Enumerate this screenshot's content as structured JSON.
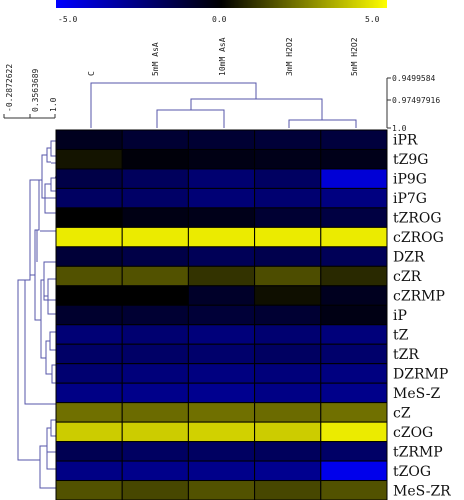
{
  "chart_data": {
    "type": "heatmap",
    "title": "",
    "colorbar": {
      "min": -5.0,
      "max": 5.0,
      "tick_labels": [
        "-5.0",
        "0.0",
        "5.0"
      ],
      "colors": {
        "low": "#0000ff",
        "mid": "#000000",
        "high": "#ffff00"
      }
    },
    "columns": [
      "C",
      "5mM AsA",
      "10mM AsA",
      "3mM H2O2",
      "5mM H2O2"
    ],
    "rows": [
      "iPR",
      "tZ9G",
      "iP9G",
      "iP7G",
      "tZROG",
      "cZROG",
      "DZR",
      "cZR",
      "cZRMP",
      "iP",
      "tZ",
      "tZR",
      "DZRMP",
      "MeS-Z",
      "cZ",
      "cZOG",
      "tZRMP",
      "tZOG",
      "MeS-ZR"
    ],
    "values": [
      [
        -0.6,
        -1.0,
        -1.0,
        -1.1,
        -1.2
      ],
      [
        0.4,
        -0.2,
        -0.4,
        -0.5,
        -0.5
      ],
      [
        -1.4,
        -1.8,
        -2.2,
        -1.9,
        -4.2
      ],
      [
        -1.9,
        -2.0,
        -2.3,
        -2.2,
        -2.5
      ],
      [
        0.0,
        -0.4,
        -0.5,
        -1.0,
        -1.3
      ],
      [
        4.6,
        4.6,
        4.6,
        4.6,
        4.6
      ],
      [
        -1.1,
        -1.4,
        -1.7,
        -1.5,
        -1.7
      ],
      [
        1.6,
        1.6,
        1.0,
        1.5,
        0.8
      ],
      [
        0.0,
        0.0,
        -0.8,
        0.3,
        -0.6
      ],
      [
        -0.9,
        -1.0,
        -1.1,
        -1.0,
        -0.4
      ],
      [
        -2.3,
        -2.2,
        -2.4,
        -2.2,
        -2.4
      ],
      [
        -2.0,
        -2.0,
        -2.1,
        -1.9,
        -2.1
      ],
      [
        -2.2,
        -2.4,
        -2.5,
        -2.4,
        -2.5
      ],
      [
        -2.6,
        -2.7,
        -2.8,
        -2.6,
        -2.7
      ],
      [
        2.2,
        2.1,
        2.2,
        2.1,
        2.2
      ],
      [
        4.0,
        4.0,
        4.1,
        4.0,
        4.6
      ],
      [
        -1.6,
        -1.9,
        -1.9,
        -1.8,
        -2.0
      ],
      [
        -2.6,
        -2.7,
        -2.7,
        -2.8,
        -4.6
      ],
      [
        1.6,
        1.4,
        1.6,
        1.4,
        1.6
      ]
    ],
    "column_dendrogram": {
      "tick_labels": [
        "0.9499584",
        "0.97497916",
        "1.0"
      ]
    },
    "row_dendrogram": {
      "tick_labels": [
        "-0.2872622",
        "0.3563689",
        "1.0"
      ]
    }
  }
}
